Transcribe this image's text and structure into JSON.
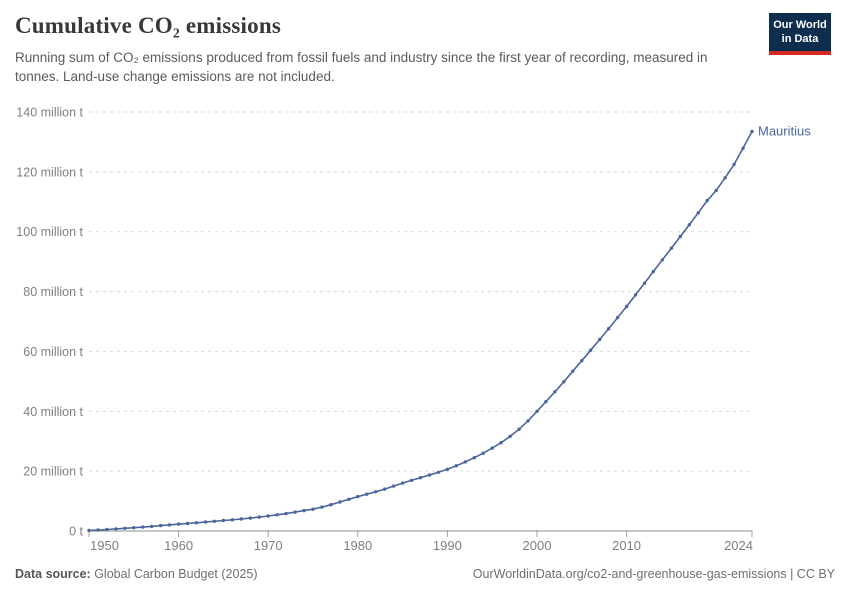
{
  "header": {
    "title": "Cumulative CO₂ emissions",
    "subtitle": "Running sum of CO₂ emissions produced from fossil fuels and industry since the first year of recording, measured in tonnes. Land-use change emissions are not included.",
    "logo": {
      "line1": "Our World",
      "line2": "in Data",
      "bg_color": "#0d2e4e",
      "accent_color": "#d42b20"
    }
  },
  "chart_data": {
    "type": "line",
    "title": "Cumulative CO₂ emissions",
    "entity_label": "Mauritius",
    "unit": "t",
    "line_color": "#4c669c",
    "grid": "horizontal dashed",
    "legend_position": "end-of-line label",
    "xlim": [
      1950,
      2024
    ],
    "ylim": [
      0,
      140000000
    ],
    "x_ticks": [
      1950,
      1960,
      1970,
      1980,
      1990,
      2000,
      2010,
      2024
    ],
    "y_ticks_million_t": [
      0,
      20,
      40,
      60,
      80,
      100,
      120,
      140
    ],
    "y_tick_labels": [
      "0 t",
      "20 million t",
      "40 million t",
      "60 million t",
      "80 million t",
      "100 million t",
      "120 million t",
      "140 million t"
    ],
    "x": [
      1950,
      1951,
      1952,
      1953,
      1954,
      1955,
      1956,
      1957,
      1958,
      1959,
      1960,
      1961,
      1962,
      1963,
      1964,
      1965,
      1966,
      1967,
      1968,
      1969,
      1970,
      1971,
      1972,
      1973,
      1974,
      1975,
      1976,
      1977,
      1978,
      1979,
      1980,
      1981,
      1982,
      1983,
      1984,
      1985,
      1986,
      1987,
      1988,
      1989,
      1990,
      1991,
      1992,
      1993,
      1994,
      1995,
      1996,
      1997,
      1998,
      1999,
      2000,
      2001,
      2002,
      2003,
      2004,
      2005,
      2006,
      2007,
      2008,
      2009,
      2010,
      2011,
      2012,
      2013,
      2014,
      2015,
      2016,
      2017,
      2018,
      2019,
      2020,
      2021,
      2022,
      2023,
      2024
    ],
    "values_million_t": [
      0.2,
      0.35,
      0.5,
      0.7,
      0.9,
      1.1,
      1.3,
      1.55,
      1.8,
      2.05,
      2.3,
      2.5,
      2.75,
      3.0,
      3.25,
      3.5,
      3.75,
      4.0,
      4.3,
      4.65,
      5.0,
      5.4,
      5.8,
      6.3,
      6.8,
      7.3,
      8.0,
      8.8,
      9.7,
      10.6,
      11.5,
      12.3,
      13.1,
      14.0,
      15.0,
      16.0,
      16.9,
      17.8,
      18.7,
      19.6,
      20.6,
      21.8,
      23.1,
      24.5,
      26.0,
      27.7,
      29.5,
      31.6,
      34.0,
      36.8,
      40.0,
      43.2,
      46.5,
      49.9,
      53.4,
      56.9,
      60.4,
      64.0,
      67.6,
      71.3,
      75.0,
      78.9,
      82.8,
      86.7,
      90.6,
      94.5,
      98.4,
      102.3,
      106.3,
      110.4,
      113.8,
      118.0,
      122.5,
      127.9,
      133.5
    ]
  },
  "footer": {
    "source_label": "Data source:",
    "source_value": " Global Carbon Budget (2025)",
    "note": "OurWorldinData.org/co2-and-greenhouse-gas-emissions | CC BY"
  }
}
